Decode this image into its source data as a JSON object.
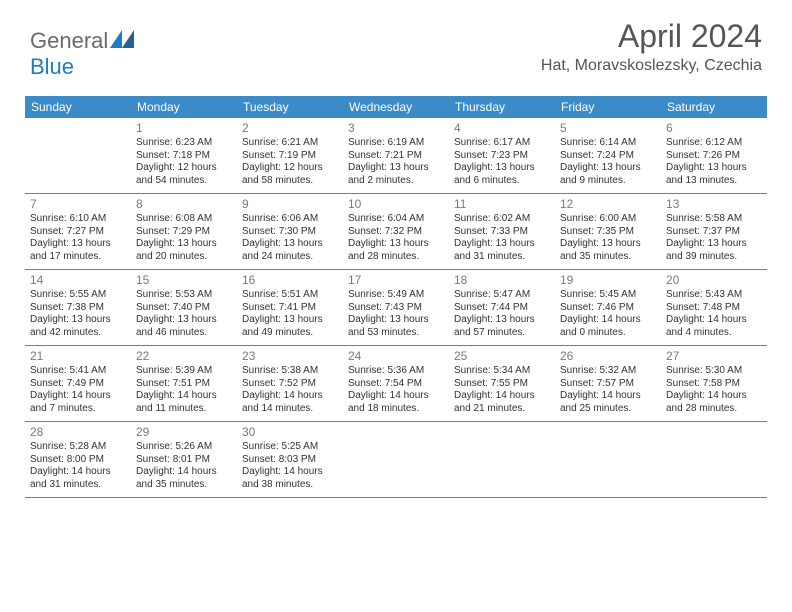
{
  "logo": {
    "gray": "General",
    "blue": "Blue"
  },
  "title": "April 2024",
  "location": "Hat, Moravskoslezsky, Czechia",
  "header_bg": "#3b8bc9",
  "days_of_week": [
    "Sunday",
    "Monday",
    "Tuesday",
    "Wednesday",
    "Thursday",
    "Friday",
    "Saturday"
  ],
  "weeks": [
    [
      null,
      {
        "n": "1",
        "sr": "Sunrise: 6:23 AM",
        "ss": "Sunset: 7:18 PM",
        "d1": "Daylight: 12 hours",
        "d2": "and 54 minutes."
      },
      {
        "n": "2",
        "sr": "Sunrise: 6:21 AM",
        "ss": "Sunset: 7:19 PM",
        "d1": "Daylight: 12 hours",
        "d2": "and 58 minutes."
      },
      {
        "n": "3",
        "sr": "Sunrise: 6:19 AM",
        "ss": "Sunset: 7:21 PM",
        "d1": "Daylight: 13 hours",
        "d2": "and 2 minutes."
      },
      {
        "n": "4",
        "sr": "Sunrise: 6:17 AM",
        "ss": "Sunset: 7:23 PM",
        "d1": "Daylight: 13 hours",
        "d2": "and 6 minutes."
      },
      {
        "n": "5",
        "sr": "Sunrise: 6:14 AM",
        "ss": "Sunset: 7:24 PM",
        "d1": "Daylight: 13 hours",
        "d2": "and 9 minutes."
      },
      {
        "n": "6",
        "sr": "Sunrise: 6:12 AM",
        "ss": "Sunset: 7:26 PM",
        "d1": "Daylight: 13 hours",
        "d2": "and 13 minutes."
      }
    ],
    [
      {
        "n": "7",
        "sr": "Sunrise: 6:10 AM",
        "ss": "Sunset: 7:27 PM",
        "d1": "Daylight: 13 hours",
        "d2": "and 17 minutes."
      },
      {
        "n": "8",
        "sr": "Sunrise: 6:08 AM",
        "ss": "Sunset: 7:29 PM",
        "d1": "Daylight: 13 hours",
        "d2": "and 20 minutes."
      },
      {
        "n": "9",
        "sr": "Sunrise: 6:06 AM",
        "ss": "Sunset: 7:30 PM",
        "d1": "Daylight: 13 hours",
        "d2": "and 24 minutes."
      },
      {
        "n": "10",
        "sr": "Sunrise: 6:04 AM",
        "ss": "Sunset: 7:32 PM",
        "d1": "Daylight: 13 hours",
        "d2": "and 28 minutes."
      },
      {
        "n": "11",
        "sr": "Sunrise: 6:02 AM",
        "ss": "Sunset: 7:33 PM",
        "d1": "Daylight: 13 hours",
        "d2": "and 31 minutes."
      },
      {
        "n": "12",
        "sr": "Sunrise: 6:00 AM",
        "ss": "Sunset: 7:35 PM",
        "d1": "Daylight: 13 hours",
        "d2": "and 35 minutes."
      },
      {
        "n": "13",
        "sr": "Sunrise: 5:58 AM",
        "ss": "Sunset: 7:37 PM",
        "d1": "Daylight: 13 hours",
        "d2": "and 39 minutes."
      }
    ],
    [
      {
        "n": "14",
        "sr": "Sunrise: 5:55 AM",
        "ss": "Sunset: 7:38 PM",
        "d1": "Daylight: 13 hours",
        "d2": "and 42 minutes."
      },
      {
        "n": "15",
        "sr": "Sunrise: 5:53 AM",
        "ss": "Sunset: 7:40 PM",
        "d1": "Daylight: 13 hours",
        "d2": "and 46 minutes."
      },
      {
        "n": "16",
        "sr": "Sunrise: 5:51 AM",
        "ss": "Sunset: 7:41 PM",
        "d1": "Daylight: 13 hours",
        "d2": "and 49 minutes."
      },
      {
        "n": "17",
        "sr": "Sunrise: 5:49 AM",
        "ss": "Sunset: 7:43 PM",
        "d1": "Daylight: 13 hours",
        "d2": "and 53 minutes."
      },
      {
        "n": "18",
        "sr": "Sunrise: 5:47 AM",
        "ss": "Sunset: 7:44 PM",
        "d1": "Daylight: 13 hours",
        "d2": "and 57 minutes."
      },
      {
        "n": "19",
        "sr": "Sunrise: 5:45 AM",
        "ss": "Sunset: 7:46 PM",
        "d1": "Daylight: 14 hours",
        "d2": "and 0 minutes."
      },
      {
        "n": "20",
        "sr": "Sunrise: 5:43 AM",
        "ss": "Sunset: 7:48 PM",
        "d1": "Daylight: 14 hours",
        "d2": "and 4 minutes."
      }
    ],
    [
      {
        "n": "21",
        "sr": "Sunrise: 5:41 AM",
        "ss": "Sunset: 7:49 PM",
        "d1": "Daylight: 14 hours",
        "d2": "and 7 minutes."
      },
      {
        "n": "22",
        "sr": "Sunrise: 5:39 AM",
        "ss": "Sunset: 7:51 PM",
        "d1": "Daylight: 14 hours",
        "d2": "and 11 minutes."
      },
      {
        "n": "23",
        "sr": "Sunrise: 5:38 AM",
        "ss": "Sunset: 7:52 PM",
        "d1": "Daylight: 14 hours",
        "d2": "and 14 minutes."
      },
      {
        "n": "24",
        "sr": "Sunrise: 5:36 AM",
        "ss": "Sunset: 7:54 PM",
        "d1": "Daylight: 14 hours",
        "d2": "and 18 minutes."
      },
      {
        "n": "25",
        "sr": "Sunrise: 5:34 AM",
        "ss": "Sunset: 7:55 PM",
        "d1": "Daylight: 14 hours",
        "d2": "and 21 minutes."
      },
      {
        "n": "26",
        "sr": "Sunrise: 5:32 AM",
        "ss": "Sunset: 7:57 PM",
        "d1": "Daylight: 14 hours",
        "d2": "and 25 minutes."
      },
      {
        "n": "27",
        "sr": "Sunrise: 5:30 AM",
        "ss": "Sunset: 7:58 PM",
        "d1": "Daylight: 14 hours",
        "d2": "and 28 minutes."
      }
    ],
    [
      {
        "n": "28",
        "sr": "Sunrise: 5:28 AM",
        "ss": "Sunset: 8:00 PM",
        "d1": "Daylight: 14 hours",
        "d2": "and 31 minutes."
      },
      {
        "n": "29",
        "sr": "Sunrise: 5:26 AM",
        "ss": "Sunset: 8:01 PM",
        "d1": "Daylight: 14 hours",
        "d2": "and 35 minutes."
      },
      {
        "n": "30",
        "sr": "Sunrise: 5:25 AM",
        "ss": "Sunset: 8:03 PM",
        "d1": "Daylight: 14 hours",
        "d2": "and 38 minutes."
      },
      null,
      null,
      null,
      null
    ]
  ]
}
